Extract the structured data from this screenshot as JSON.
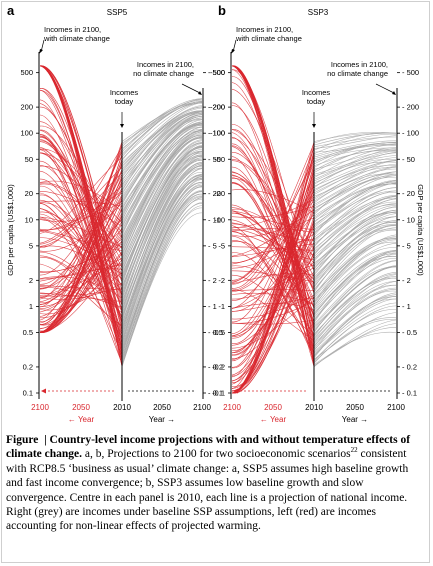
{
  "chart_data": [
    {
      "panel": "a",
      "scenario": "SSP5",
      "type": "line",
      "ylabel": "GDP per capita (US$1,000)",
      "y_scale": "log",
      "ylim": [
        0.1,
        700
      ],
      "y_ticks": [
        "500",
        "200",
        "100",
        "50",
        "20",
        "10",
        "5",
        "2",
        "1",
        "0.5",
        "0.2",
        "0.1"
      ],
      "x_ticks_left": [
        "2100",
        "2050",
        "2010"
      ],
      "x_ticks_right": [
        "2050",
        "2100"
      ],
      "left_axis_label": "Year",
      "right_axis_label": "Year",
      "annotations": {
        "left_top": "Incomes in 2100,\nwith climate change",
        "center": "Incomes\ntoday",
        "right_top": "Incomes in 2100,\nno climate change"
      },
      "series_summary": {
        "today_range": [
          0.2,
          80
        ],
        "no_climate_change_2100_range": [
          12,
          250
        ],
        "with_climate_change_2100_range": [
          0.5,
          600
        ]
      },
      "colors": {
        "with_climate_change": "#d9272e",
        "no_climate_change": "#a6a6a6"
      }
    },
    {
      "panel": "b",
      "scenario": "SSP3",
      "type": "line",
      "ylabel": "GDP per capita (US$1,000)",
      "y_scale": "log",
      "ylim": [
        0.1,
        700
      ],
      "y_ticks": [
        "500",
        "200",
        "100",
        "50",
        "20",
        "10",
        "5",
        "2",
        "1",
        "0.5",
        "0.2",
        "0.1"
      ],
      "x_ticks_left": [
        "2100",
        "2050",
        "2010"
      ],
      "x_ticks_right": [
        "2050",
        "2100"
      ],
      "left_axis_label": "Year",
      "right_axis_label": "Year",
      "annotations": {
        "left_top": "Incomes in 2100,\nwith climate change",
        "center": "Incomes\ntoday",
        "right_top": "Incomes in 2100,\nno climate change"
      },
      "series_summary": {
        "today_range": [
          0.2,
          80
        ],
        "no_climate_change_2100_range": [
          0.5,
          100
        ],
        "with_climate_change_2100_range": [
          0.1,
          600
        ]
      },
      "colors": {
        "with_climate_change": "#d9272e",
        "no_climate_change": "#a6a6a6"
      }
    }
  ],
  "caption": {
    "label": "Figure",
    "title": "Country-level income projections with and without temperature effects of climate change.",
    "text_1": "a, b, Projections to 2100 for two socioeconomic scenarios",
    "ref": "22",
    "text_2": "consistent with RCP8.5 ‘business as usual’ climate change: a, SSP5 assumes high baseline growth and fast income convergence; b, SSP3 assumes low baseline growth and slow convergence. Centre in each panel is 2010, each line is a projection of national income. Right (grey) are incomes under baseline SSP assumptions, left (red) are incomes accounting for non-linear effects of projected warming."
  }
}
